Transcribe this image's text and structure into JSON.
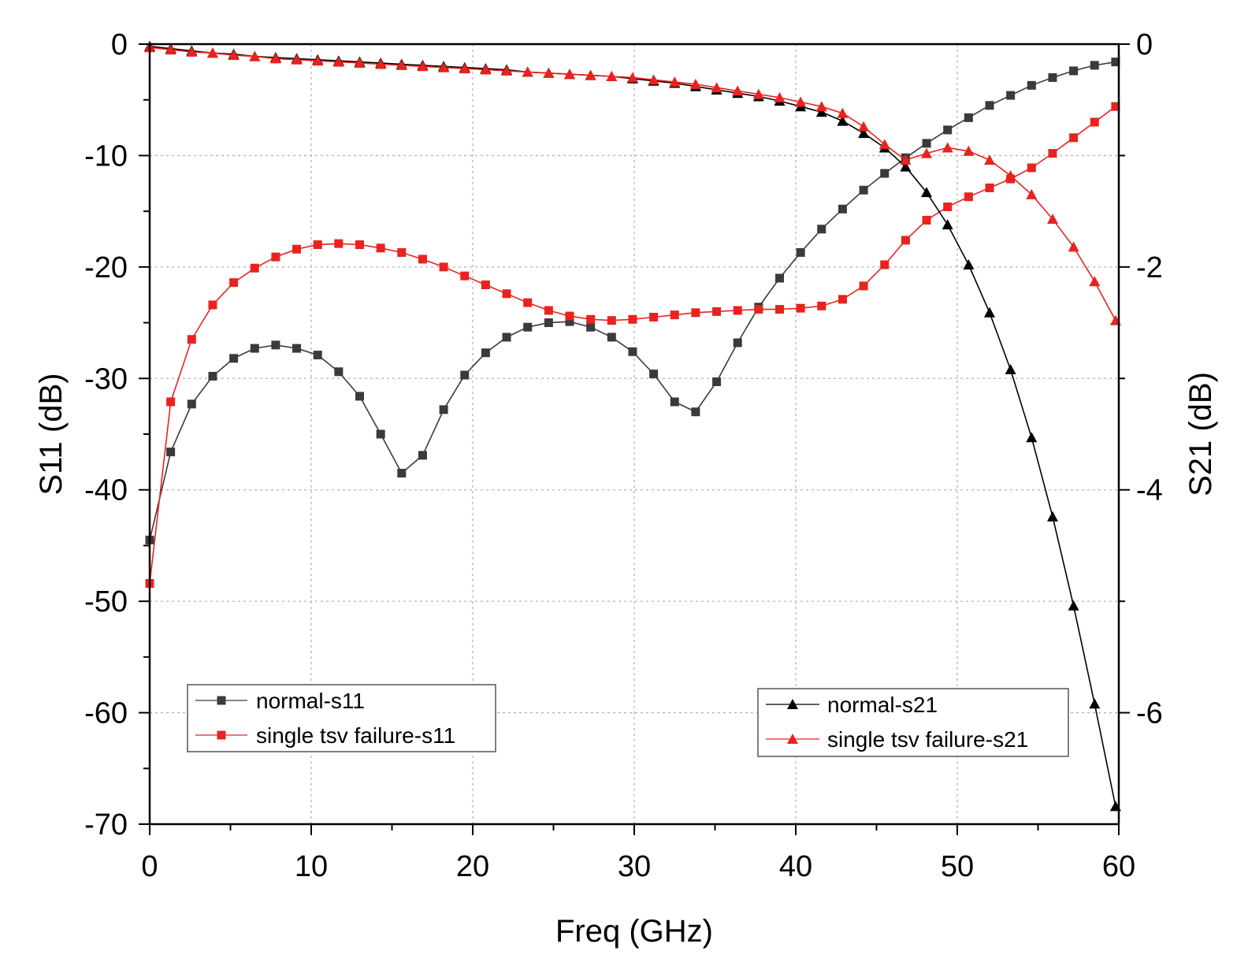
{
  "chart_data": {
    "type": "line",
    "xlabel": "Freq (GHz)",
    "ylabel_left": "S11 (dB)",
    "ylabel_right": "S21 (dB)",
    "xlim": [
      0,
      60
    ],
    "ylim_left": [
      -70,
      0
    ],
    "ylim_right": [
      -7,
      0
    ],
    "xticks": [
      0,
      10,
      20,
      30,
      40,
      50,
      60
    ],
    "yticks_left": [
      0,
      -10,
      -20,
      -30,
      -40,
      -50,
      -60,
      -70
    ],
    "yticks_right": [
      0,
      -2,
      -4,
      -6
    ],
    "tick_labels": {
      "x": [
        "0",
        "10",
        "20",
        "30",
        "40",
        "50",
        "60"
      ],
      "y_left": [
        "0",
        "-10",
        "-20",
        "-30",
        "-40",
        "-50",
        "-60",
        "-70"
      ],
      "y_right": [
        "0",
        "-2",
        "-4",
        "-6"
      ]
    },
    "grid": true,
    "legends": [
      {
        "position": "bottom-left",
        "entries": [
          "normal-s11",
          "single tsv failure-s11"
        ]
      },
      {
        "position": "bottom-right",
        "entries": [
          "normal-s21",
          "single tsv failure-s21"
        ]
      }
    ],
    "series": [
      {
        "name": "normal-s11",
        "axis": "left",
        "color": "#3a3a3a",
        "marker": "square",
        "x": [
          0,
          1.3,
          2.6,
          3.9,
          5.2,
          6.5,
          7.8,
          9.1,
          10.4,
          11.7,
          13.0,
          14.3,
          15.6,
          16.9,
          18.2,
          19.5,
          20.8,
          22.1,
          23.4,
          24.7,
          26.0,
          27.3,
          28.6,
          29.9,
          31.2,
          32.5,
          33.8,
          35.1,
          36.4,
          37.7,
          39.0,
          40.3,
          41.6,
          42.9,
          44.2,
          45.5,
          46.8,
          48.1,
          49.4,
          50.7,
          52.0,
          53.3,
          54.6,
          55.9,
          57.2,
          58.5,
          59.8
        ],
        "values": [
          -44.5,
          -36.6,
          -32.3,
          -29.8,
          -28.2,
          -27.3,
          -27.0,
          -27.3,
          -27.9,
          -29.4,
          -31.6,
          -35.0,
          -38.5,
          -36.9,
          -32.8,
          -29.7,
          -27.7,
          -26.3,
          -25.4,
          -25.0,
          -24.9,
          -25.4,
          -26.3,
          -27.6,
          -29.6,
          -32.1,
          -33.0,
          -30.3,
          -26.8,
          -23.6,
          -21.0,
          -18.7,
          -16.6,
          -14.8,
          -13.1,
          -11.6,
          -10.2,
          -8.9,
          -7.7,
          -6.6,
          -5.5,
          -4.6,
          -3.7,
          -3.0,
          -2.4,
          -1.9,
          -1.6
        ]
      },
      {
        "name": "single tsv failure-s11",
        "axis": "left",
        "color": "#e8231f",
        "marker": "square",
        "x": [
          0,
          1.3,
          2.6,
          3.9,
          5.2,
          6.5,
          7.8,
          9.1,
          10.4,
          11.7,
          13.0,
          14.3,
          15.6,
          16.9,
          18.2,
          19.5,
          20.8,
          22.1,
          23.4,
          24.7,
          26.0,
          27.3,
          28.6,
          29.9,
          31.2,
          32.5,
          33.8,
          35.1,
          36.4,
          37.7,
          39.0,
          40.3,
          41.6,
          42.9,
          44.2,
          45.5,
          46.8,
          48.1,
          49.4,
          50.7,
          52.0,
          53.3,
          54.6,
          55.9,
          57.2,
          58.5,
          59.8
        ],
        "values": [
          -48.4,
          -32.1,
          -26.5,
          -23.4,
          -21.4,
          -20.1,
          -19.1,
          -18.4,
          -18.0,
          -17.9,
          -18.0,
          -18.3,
          -18.7,
          -19.3,
          -20.0,
          -20.8,
          -21.6,
          -22.4,
          -23.2,
          -23.9,
          -24.4,
          -24.7,
          -24.8,
          -24.7,
          -24.5,
          -24.3,
          -24.1,
          -24.0,
          -23.9,
          -23.8,
          -23.8,
          -23.7,
          -23.5,
          -22.9,
          -21.7,
          -19.8,
          -17.6,
          -15.8,
          -14.6,
          -13.7,
          -12.9,
          -12.1,
          -11.1,
          -9.8,
          -8.4,
          -7.0,
          -5.6
        ]
      },
      {
        "name": "normal-s21",
        "axis": "right",
        "color": "#000000",
        "marker": "triangle",
        "x": [
          0,
          1.3,
          2.6,
          3.9,
          5.2,
          6.5,
          7.8,
          9.1,
          10.4,
          11.7,
          13.0,
          14.3,
          15.6,
          16.9,
          18.2,
          19.5,
          20.8,
          22.1,
          23.4,
          24.7,
          26.0,
          27.3,
          28.6,
          29.9,
          31.2,
          32.5,
          33.8,
          35.1,
          36.4,
          37.7,
          39.0,
          40.3,
          41.6,
          42.9,
          44.2,
          45.5,
          46.8,
          48.1,
          49.4,
          50.7,
          52.0,
          53.3,
          54.6,
          55.9,
          57.2,
          58.5,
          59.8
        ],
        "values": [
          -0.02,
          -0.04,
          -0.06,
          -0.08,
          -0.09,
          -0.11,
          -0.12,
          -0.13,
          -0.14,
          -0.15,
          -0.16,
          -0.17,
          -0.18,
          -0.19,
          -0.2,
          -0.21,
          -0.22,
          -0.23,
          -0.25,
          -0.26,
          -0.27,
          -0.28,
          -0.29,
          -0.31,
          -0.33,
          -0.35,
          -0.38,
          -0.41,
          -0.44,
          -0.47,
          -0.51,
          -0.56,
          -0.61,
          -0.69,
          -0.8,
          -0.93,
          -1.1,
          -1.33,
          -1.62,
          -1.98,
          -2.41,
          -2.92,
          -3.53,
          -4.24,
          -5.04,
          -5.92,
          -6.84
        ]
      },
      {
        "name": "single tsv failure-s21",
        "axis": "right",
        "color": "#e8231f",
        "marker": "triangle",
        "x": [
          0,
          1.3,
          2.6,
          3.9,
          5.2,
          6.5,
          7.8,
          9.1,
          10.4,
          11.7,
          13.0,
          14.3,
          15.6,
          16.9,
          18.2,
          19.5,
          20.8,
          22.1,
          23.4,
          24.7,
          26.0,
          27.3,
          28.6,
          29.9,
          31.2,
          32.5,
          33.8,
          35.1,
          36.4,
          37.7,
          39.0,
          40.3,
          41.6,
          42.9,
          44.2,
          45.5,
          46.8,
          48.1,
          49.4,
          50.7,
          52.0,
          53.3,
          54.6,
          55.9,
          57.2,
          58.5,
          59.8
        ],
        "values": [
          -0.03,
          -0.05,
          -0.07,
          -0.08,
          -0.1,
          -0.11,
          -0.13,
          -0.14,
          -0.15,
          -0.16,
          -0.17,
          -0.18,
          -0.19,
          -0.2,
          -0.21,
          -0.22,
          -0.23,
          -0.24,
          -0.25,
          -0.26,
          -0.27,
          -0.28,
          -0.29,
          -0.3,
          -0.32,
          -0.34,
          -0.36,
          -0.39,
          -0.42,
          -0.45,
          -0.48,
          -0.52,
          -0.56,
          -0.62,
          -0.74,
          -0.9,
          -1.04,
          -0.98,
          -0.93,
          -0.96,
          -1.04,
          -1.18,
          -1.35,
          -1.57,
          -1.82,
          -2.13,
          -2.48
        ]
      }
    ]
  }
}
